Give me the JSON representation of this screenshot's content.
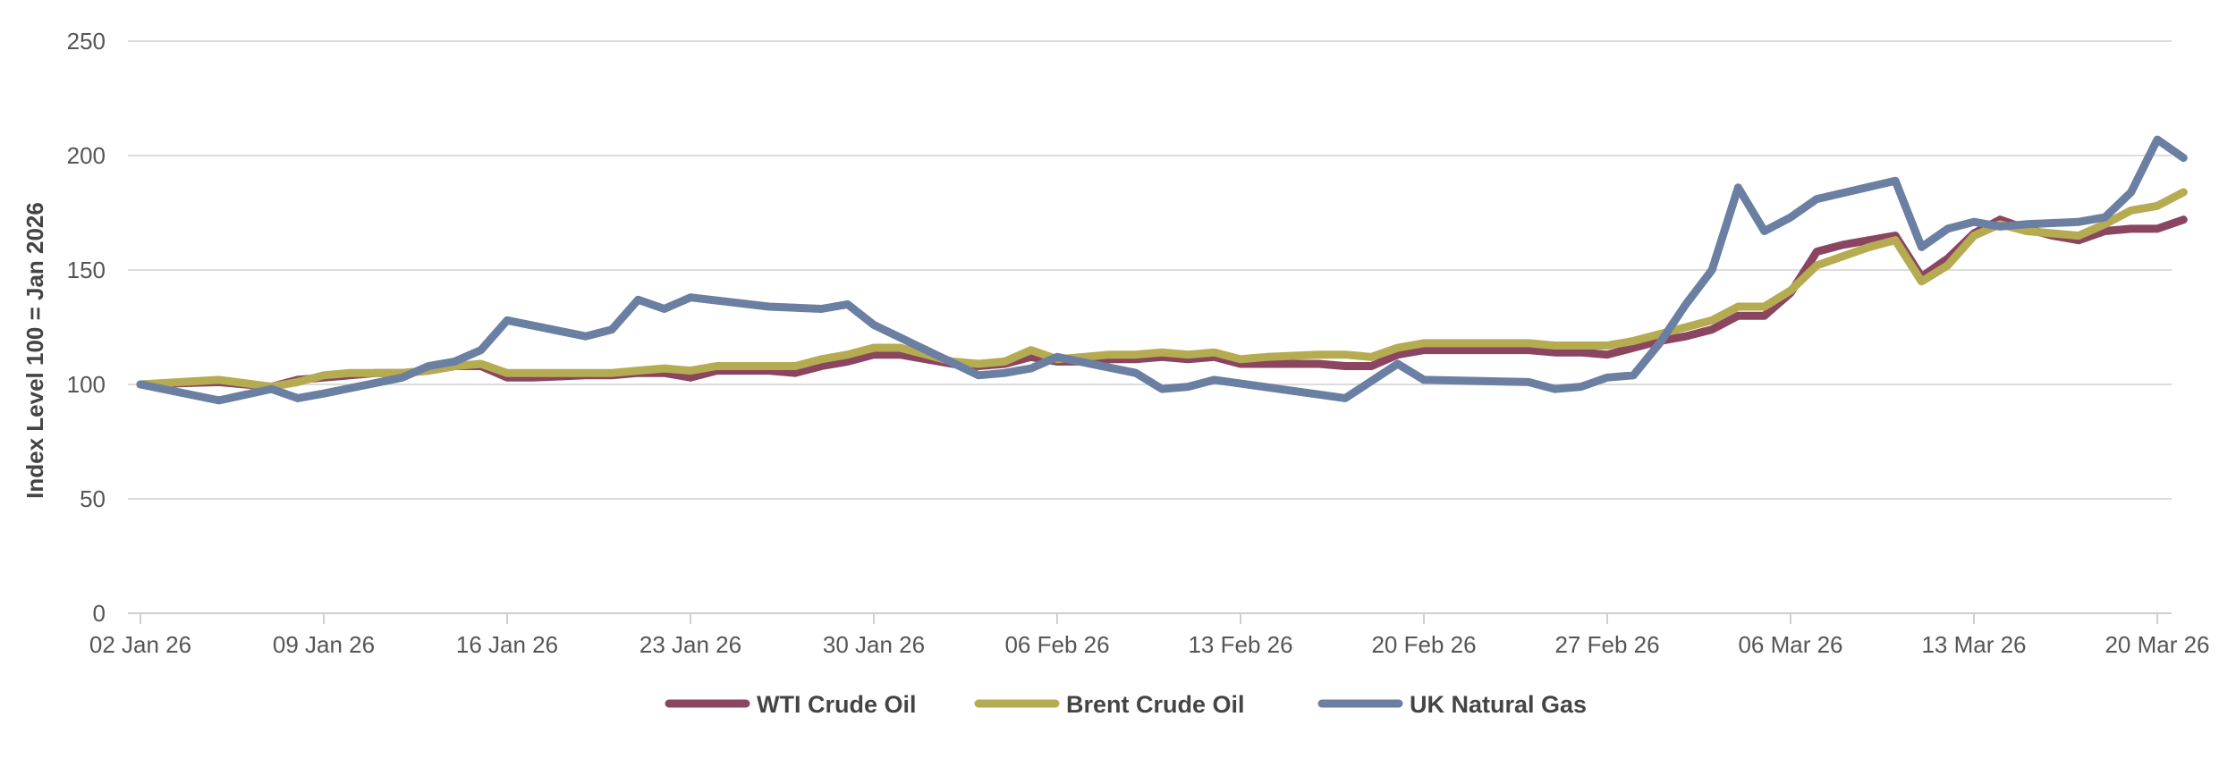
{
  "chart_data": {
    "type": "line",
    "title": "",
    "xlabel": "",
    "ylabel": "Index Level 100 = Jan 2026",
    "ylim": [
      0,
      250
    ],
    "yticks": [
      0,
      50,
      100,
      150,
      200,
      250
    ],
    "grid": true,
    "legend_position": "bottom-center",
    "x_range": [
      0,
      77
    ],
    "x_ticks": [
      {
        "day": 0,
        "label": "02 Jan 26"
      },
      {
        "day": 7,
        "label": "09 Jan 26"
      },
      {
        "day": 14,
        "label": "16 Jan 26"
      },
      {
        "day": 21,
        "label": "23 Jan 26"
      },
      {
        "day": 28,
        "label": "30 Jan 26"
      },
      {
        "day": 35,
        "label": "06 Feb 26"
      },
      {
        "day": 42,
        "label": "13 Feb 26"
      },
      {
        "day": 49,
        "label": "20 Feb 26"
      },
      {
        "day": 56,
        "label": "27 Feb 26"
      },
      {
        "day": 63,
        "label": "06 Mar 26"
      },
      {
        "day": 70,
        "label": "13 Mar 26"
      },
      {
        "day": 77,
        "label": "20 Mar 26"
      }
    ],
    "series": [
      {
        "name": "WTI Crude Oil",
        "color": "#8b4560",
        "points": [
          [
            0,
            100
          ],
          [
            3,
            101
          ],
          [
            5,
            99
          ],
          [
            6,
            102
          ],
          [
            7,
            103
          ],
          [
            8,
            104
          ],
          [
            9,
            105
          ],
          [
            10,
            105
          ],
          [
            11,
            106
          ],
          [
            12,
            108
          ],
          [
            13,
            108
          ],
          [
            14,
            103
          ],
          [
            15,
            103
          ],
          [
            17,
            104
          ],
          [
            18,
            104
          ],
          [
            19,
            105
          ],
          [
            20,
            105
          ],
          [
            21,
            103
          ],
          [
            22,
            106
          ],
          [
            23,
            106
          ],
          [
            24,
            106
          ],
          [
            25,
            105
          ],
          [
            26,
            108
          ],
          [
            27,
            110
          ],
          [
            28,
            113
          ],
          [
            29,
            113
          ],
          [
            30,
            111
          ],
          [
            31,
            109
          ],
          [
            32,
            108
          ],
          [
            33,
            109
          ],
          [
            34,
            112
          ],
          [
            35,
            110
          ],
          [
            36,
            110
          ],
          [
            37,
            111
          ],
          [
            38,
            111
          ],
          [
            39,
            112
          ],
          [
            40,
            111
          ],
          [
            41,
            112
          ],
          [
            42,
            109
          ],
          [
            43,
            109
          ],
          [
            45,
            109
          ],
          [
            46,
            108
          ],
          [
            47,
            108
          ],
          [
            48,
            113
          ],
          [
            49,
            115
          ],
          [
            50,
            115
          ],
          [
            51,
            115
          ],
          [
            52,
            115
          ],
          [
            53,
            115
          ],
          [
            54,
            114
          ],
          [
            55,
            114
          ],
          [
            56,
            113
          ],
          [
            57,
            116
          ],
          [
            58,
            119
          ],
          [
            59,
            121
          ],
          [
            60,
            124
          ],
          [
            61,
            130
          ],
          [
            62,
            130
          ],
          [
            63,
            140
          ],
          [
            64,
            158
          ],
          [
            65,
            161
          ],
          [
            66,
            163
          ],
          [
            67,
            165
          ],
          [
            68,
            147
          ],
          [
            69,
            155
          ],
          [
            70,
            166
          ],
          [
            71,
            172
          ],
          [
            72,
            168
          ],
          [
            73,
            165
          ],
          [
            74,
            163
          ],
          [
            75,
            167
          ],
          [
            76,
            168
          ],
          [
            77,
            168
          ],
          [
            78,
            172
          ]
        ]
      },
      {
        "name": "Brent Crude Oil",
        "color": "#b5ac52",
        "points": [
          [
            0,
            100
          ],
          [
            3,
            102
          ],
          [
            5,
            99
          ],
          [
            6,
            101
          ],
          [
            7,
            104
          ],
          [
            8,
            105
          ],
          [
            9,
            105
          ],
          [
            10,
            105
          ],
          [
            11,
            106
          ],
          [
            12,
            108
          ],
          [
            13,
            109
          ],
          [
            14,
            105
          ],
          [
            15,
            105
          ],
          [
            17,
            105
          ],
          [
            18,
            105
          ],
          [
            19,
            106
          ],
          [
            20,
            107
          ],
          [
            21,
            106
          ],
          [
            22,
            108
          ],
          [
            23,
            108
          ],
          [
            24,
            108
          ],
          [
            25,
            108
          ],
          [
            26,
            111
          ],
          [
            27,
            113
          ],
          [
            28,
            116
          ],
          [
            29,
            116
          ],
          [
            30,
            113
          ],
          [
            31,
            110
          ],
          [
            32,
            109
          ],
          [
            33,
            110
          ],
          [
            34,
            115
          ],
          [
            35,
            111
          ],
          [
            36,
            112
          ],
          [
            37,
            113
          ],
          [
            38,
            113
          ],
          [
            39,
            114
          ],
          [
            40,
            113
          ],
          [
            41,
            114
          ],
          [
            42,
            111
          ],
          [
            43,
            112
          ],
          [
            45,
            113
          ],
          [
            46,
            113
          ],
          [
            47,
            112
          ],
          [
            48,
            116
          ],
          [
            49,
            118
          ],
          [
            50,
            118
          ],
          [
            51,
            118
          ],
          [
            52,
            118
          ],
          [
            53,
            118
          ],
          [
            54,
            117
          ],
          [
            55,
            117
          ],
          [
            56,
            117
          ],
          [
            57,
            119
          ],
          [
            58,
            122
          ],
          [
            59,
            125
          ],
          [
            60,
            128
          ],
          [
            61,
            134
          ],
          [
            62,
            134
          ],
          [
            63,
            141
          ],
          [
            64,
            152
          ],
          [
            65,
            156
          ],
          [
            66,
            160
          ],
          [
            67,
            163
          ],
          [
            68,
            145
          ],
          [
            69,
            152
          ],
          [
            70,
            165
          ],
          [
            71,
            170
          ],
          [
            72,
            167
          ],
          [
            73,
            166
          ],
          [
            74,
            165
          ],
          [
            75,
            170
          ],
          [
            76,
            176
          ],
          [
            77,
            178
          ],
          [
            78,
            184
          ]
        ]
      },
      {
        "name": "UK Natural Gas",
        "color": "#6b7fa3",
        "points": [
          [
            0,
            100
          ],
          [
            3,
            93
          ],
          [
            5,
            98
          ],
          [
            6,
            94
          ],
          [
            7,
            96
          ],
          [
            10,
            103
          ],
          [
            11,
            108
          ],
          [
            12,
            110
          ],
          [
            13,
            115
          ],
          [
            14,
            128
          ],
          [
            17,
            121
          ],
          [
            18,
            124
          ],
          [
            19,
            137
          ],
          [
            20,
            133
          ],
          [
            21,
            138
          ],
          [
            24,
            134
          ],
          [
            26,
            133
          ],
          [
            27,
            135
          ],
          [
            28,
            126
          ],
          [
            32,
            104
          ],
          [
            33,
            105
          ],
          [
            34,
            107
          ],
          [
            35,
            112
          ],
          [
            38,
            105
          ],
          [
            39,
            98
          ],
          [
            40,
            99
          ],
          [
            41,
            102
          ],
          [
            46,
            94
          ],
          [
            48,
            109
          ],
          [
            49,
            102
          ],
          [
            53,
            101
          ],
          [
            54,
            98
          ],
          [
            55,
            99
          ],
          [
            56,
            103
          ],
          [
            57,
            104
          ],
          [
            58,
            118
          ],
          [
            59,
            135
          ],
          [
            60,
            150
          ],
          [
            61,
            186
          ],
          [
            62,
            167
          ],
          [
            63,
            173
          ],
          [
            64,
            181
          ],
          [
            67,
            189
          ],
          [
            68,
            160
          ],
          [
            69,
            168
          ],
          [
            70,
            171
          ],
          [
            71,
            169
          ],
          [
            72,
            170
          ],
          [
            74,
            171
          ],
          [
            75,
            173
          ],
          [
            76,
            184
          ],
          [
            77,
            207
          ],
          [
            78,
            199
          ]
        ]
      }
    ]
  }
}
